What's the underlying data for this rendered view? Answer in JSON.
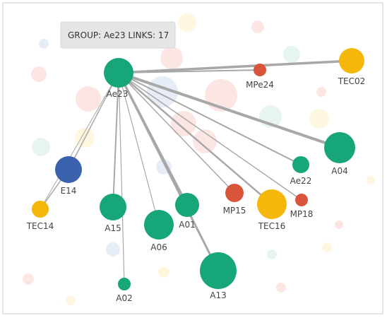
{
  "tooltip": "GROUP: Ae23 LINKS: 17",
  "nodes": [
    {
      "label": "Ae23"
    },
    {
      "label": "TEC02"
    },
    {
      "label": "MPe24"
    },
    {
      "label": "E14"
    },
    {
      "label": "TEC14"
    },
    {
      "label": "A15"
    },
    {
      "label": "A06"
    },
    {
      "label": "A01"
    },
    {
      "label": "MP15"
    },
    {
      "label": "TEC16"
    },
    {
      "label": "MP18"
    },
    {
      "label": "Ae22"
    },
    {
      "label": "A04"
    },
    {
      "label": "A13"
    },
    {
      "label": "A02"
    }
  ]
}
